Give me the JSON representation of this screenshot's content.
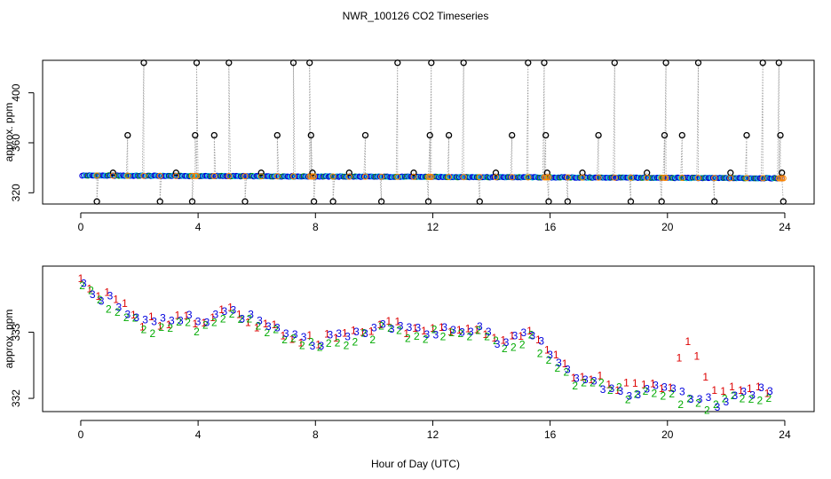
{
  "chart_data": {
    "title": "NWR_100126  CO2 Timeseries",
    "xlabel": "Hour of Day (UTC)",
    "colors": {
      "ch1": "#dd0000",
      "ch2": "#00aa00",
      "ch3": "#0000dd",
      "cyan": "#00cccc",
      "orange": "#ff8800",
      "line": "#999999",
      "marker": "#000000"
    },
    "panels": [
      {
        "type": "scatter",
        "ylabel": "approx. ppm",
        "xlim": [
          -1.3,
          25.0
        ],
        "ylim": [
          311,
          426
        ],
        "xticks": [
          0,
          4,
          8,
          12,
          16,
          20,
          24
        ],
        "yticks": [
          320,
          360,
          400
        ],
        "base_series": {
          "range": [
            0.05,
            23.9
          ],
          "step": 0.05,
          "value_start": 333.8,
          "value_end": 331.6
        },
        "spikes": [
          {
            "x": 0.55,
            "y": 313
          },
          {
            "x": 1.1,
            "y": 336
          },
          {
            "x": 1.6,
            "y": 366
          },
          {
            "x": 2.15,
            "y": 424
          },
          {
            "x": 2.7,
            "y": 313
          },
          {
            "x": 3.25,
            "y": 336
          },
          {
            "x": 3.8,
            "y": 313
          },
          {
            "x": 3.9,
            "y": 366
          },
          {
            "x": 3.95,
            "y": 424
          },
          {
            "x": 4.55,
            "y": 366
          },
          {
            "x": 5.05,
            "y": 424
          },
          {
            "x": 5.6,
            "y": 313
          },
          {
            "x": 6.15,
            "y": 336
          },
          {
            "x": 6.7,
            "y": 366
          },
          {
            "x": 7.25,
            "y": 424
          },
          {
            "x": 7.8,
            "y": 424
          },
          {
            "x": 7.85,
            "y": 366
          },
          {
            "x": 7.9,
            "y": 336
          },
          {
            "x": 7.95,
            "y": 313
          },
          {
            "x": 8.6,
            "y": 313
          },
          {
            "x": 9.15,
            "y": 336
          },
          {
            "x": 9.7,
            "y": 366
          },
          {
            "x": 10.25,
            "y": 313
          },
          {
            "x": 10.8,
            "y": 424
          },
          {
            "x": 11.35,
            "y": 336
          },
          {
            "x": 11.85,
            "y": 313
          },
          {
            "x": 11.9,
            "y": 366
          },
          {
            "x": 11.95,
            "y": 424
          },
          {
            "x": 12.55,
            "y": 366
          },
          {
            "x": 13.05,
            "y": 424
          },
          {
            "x": 13.6,
            "y": 313
          },
          {
            "x": 14.15,
            "y": 336
          },
          {
            "x": 14.7,
            "y": 366
          },
          {
            "x": 15.25,
            "y": 424
          },
          {
            "x": 15.8,
            "y": 424
          },
          {
            "x": 15.85,
            "y": 366
          },
          {
            "x": 15.9,
            "y": 336
          },
          {
            "x": 15.95,
            "y": 313
          },
          {
            "x": 16.6,
            "y": 313
          },
          {
            "x": 17.1,
            "y": 336
          },
          {
            "x": 17.65,
            "y": 366
          },
          {
            "x": 18.2,
            "y": 424
          },
          {
            "x": 18.75,
            "y": 313
          },
          {
            "x": 19.3,
            "y": 336
          },
          {
            "x": 19.8,
            "y": 313
          },
          {
            "x": 19.9,
            "y": 366
          },
          {
            "x": 19.95,
            "y": 424
          },
          {
            "x": 20.5,
            "y": 366
          },
          {
            "x": 21.05,
            "y": 424
          },
          {
            "x": 21.6,
            "y": 313
          },
          {
            "x": 22.15,
            "y": 336
          },
          {
            "x": 22.7,
            "y": 366
          },
          {
            "x": 23.25,
            "y": 424
          },
          {
            "x": 23.8,
            "y": 424
          },
          {
            "x": 23.85,
            "y": 366
          },
          {
            "x": 23.9,
            "y": 336
          },
          {
            "x": 23.95,
            "y": 313
          }
        ]
      },
      {
        "type": "scatter",
        "ylabel": "approx. ppm",
        "xlim": [
          -1.3,
          25.0
        ],
        "ylim": [
          331.8,
          334.0
        ],
        "xticks": [
          0,
          4,
          8,
          12,
          16,
          20,
          24
        ],
        "yticks": [
          332.0,
          333.0
        ],
        "channels": [
          "1",
          "2",
          "3"
        ],
        "profile": [
          [
            0.0,
            333.85
          ],
          [
            0.3,
            333.65
          ],
          [
            0.6,
            333.55
          ],
          [
            0.9,
            333.5
          ],
          [
            1.2,
            333.45
          ],
          [
            1.5,
            333.35
          ],
          [
            1.8,
            333.2
          ],
          [
            2.2,
            333.1
          ],
          [
            2.6,
            333.15
          ],
          [
            3.0,
            333.1
          ],
          [
            3.5,
            333.2
          ],
          [
            4.0,
            333.15
          ],
          [
            4.4,
            333.2
          ],
          [
            4.8,
            333.3
          ],
          [
            5.2,
            333.35
          ],
          [
            5.6,
            333.25
          ],
          [
            6.0,
            333.1
          ],
          [
            6.5,
            333.05
          ],
          [
            7.0,
            332.95
          ],
          [
            7.5,
            332.88
          ],
          [
            7.9,
            332.82
          ],
          [
            8.4,
            332.88
          ],
          [
            9.0,
            332.9
          ],
          [
            9.6,
            332.95
          ],
          [
            10.0,
            333.05
          ],
          [
            10.4,
            333.12
          ],
          [
            10.8,
            333.05
          ],
          [
            11.2,
            333.0
          ],
          [
            11.6,
            332.98
          ],
          [
            12.0,
            333.05
          ],
          [
            12.4,
            333.0
          ],
          [
            12.9,
            333.08
          ],
          [
            13.4,
            333.05
          ],
          [
            13.9,
            332.95
          ],
          [
            14.4,
            332.85
          ],
          [
            14.9,
            332.9
          ],
          [
            15.3,
            333.0
          ],
          [
            15.6,
            332.85
          ],
          [
            16.0,
            332.65
          ],
          [
            16.4,
            332.5
          ],
          [
            16.8,
            332.35
          ],
          [
            17.2,
            332.25
          ],
          [
            17.7,
            332.22
          ],
          [
            18.2,
            332.18
          ],
          [
            18.7,
            332.12
          ],
          [
            19.2,
            332.1
          ],
          [
            19.8,
            332.15
          ],
          [
            20.2,
            332.05
          ],
          [
            20.6,
            332.0
          ],
          [
            21.0,
            331.97
          ],
          [
            21.5,
            331.93
          ],
          [
            22.0,
            332.02
          ],
          [
            22.5,
            332.1
          ],
          [
            23.0,
            332.1
          ],
          [
            23.5,
            332.05
          ],
          [
            23.7,
            332.0
          ]
        ],
        "series1_bump": [
          [
            20.2,
            332.3
          ],
          [
            20.4,
            332.55
          ],
          [
            20.6,
            332.8
          ],
          [
            20.8,
            332.88
          ],
          [
            21.0,
            332.7
          ],
          [
            21.2,
            332.45
          ],
          [
            21.5,
            332.2
          ],
          [
            21.8,
            332.05
          ]
        ]
      }
    ]
  }
}
